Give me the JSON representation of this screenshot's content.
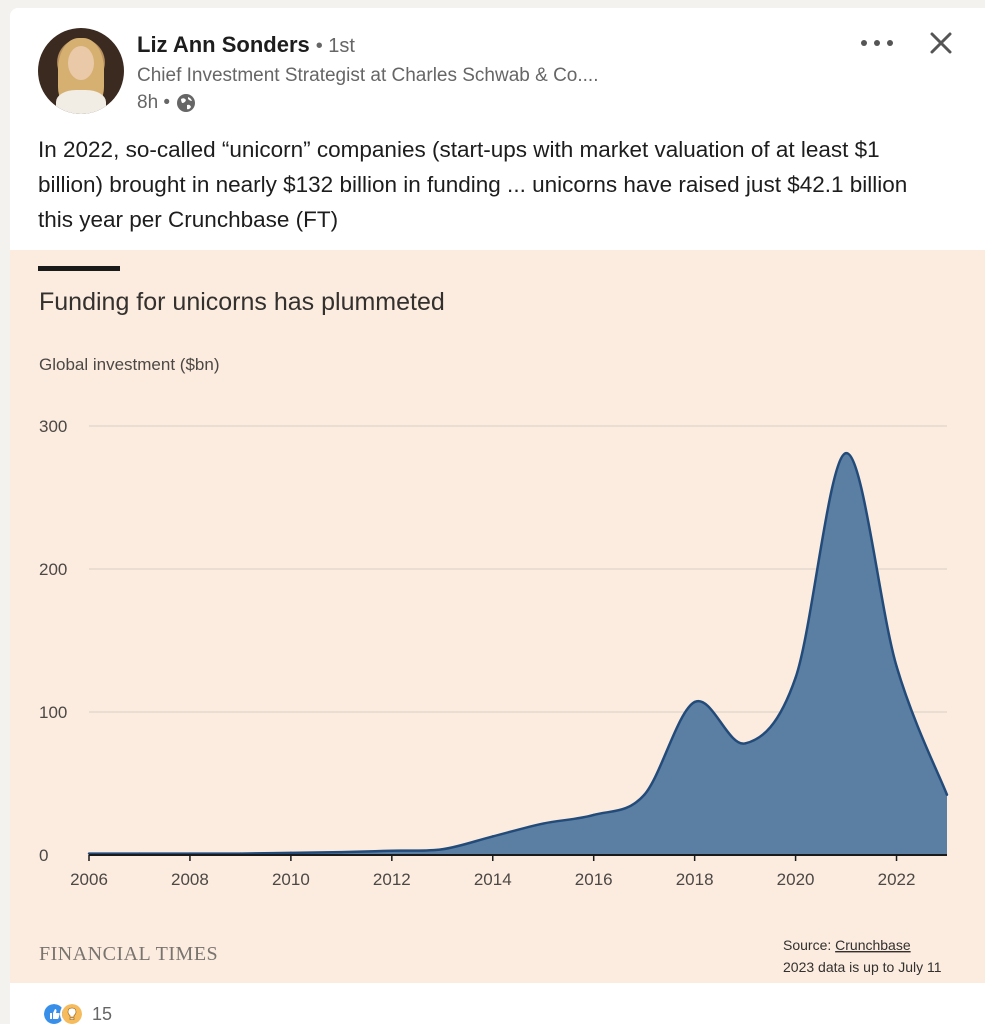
{
  "post": {
    "author_name": "Liz Ann Sonders",
    "connection": "• 1st",
    "headline": "Chief Investment Strategist at Charles Schwab & Co....",
    "time": "8h •",
    "text": "In 2022, so-called “unicorn” companies (start-ups with market valuation of at least $1 billion) brought in nearly $132 billion in funding ... unicorns have raised just $42.1 billion this year per Crunchbase (FT)",
    "reaction_count": "15",
    "icons": [
      "avatar",
      "globe-icon",
      "more-icon",
      "close-icon",
      "like-icon",
      "insightful-icon"
    ]
  },
  "chart_data": {
    "type": "area",
    "title": "Funding for unicorns has plummeted",
    "ylabel": "Global investment ($bn)",
    "x_ticks": [
      "2006",
      "2008",
      "2010",
      "2012",
      "2014",
      "2016",
      "2018",
      "2020",
      "2022"
    ],
    "y_ticks": [
      "0",
      "100",
      "200",
      "300"
    ],
    "xlim": [
      2006,
      2023
    ],
    "ylim": [
      0,
      300
    ],
    "grid": true,
    "x": [
      2006,
      2007,
      2008,
      2009,
      2010,
      2011,
      2012,
      2013,
      2014,
      2015,
      2016,
      2017,
      2018,
      2019,
      2020,
      2021,
      2022,
      2023
    ],
    "values": [
      1,
      1,
      1,
      1,
      1.5,
      2,
      3,
      4,
      13,
      22,
      28,
      42,
      107,
      78,
      124,
      281,
      132,
      42.1
    ],
    "source_label": "Source:",
    "source_link": "Crunchbase",
    "note": "2023 data is up to July 11",
    "publisher": "FINANCIAL TIMES",
    "colors": {
      "fill": "#5b7fa3",
      "stroke": "#224b7a",
      "background": "#fbecdf",
      "grid": "#d9cfc6"
    }
  }
}
